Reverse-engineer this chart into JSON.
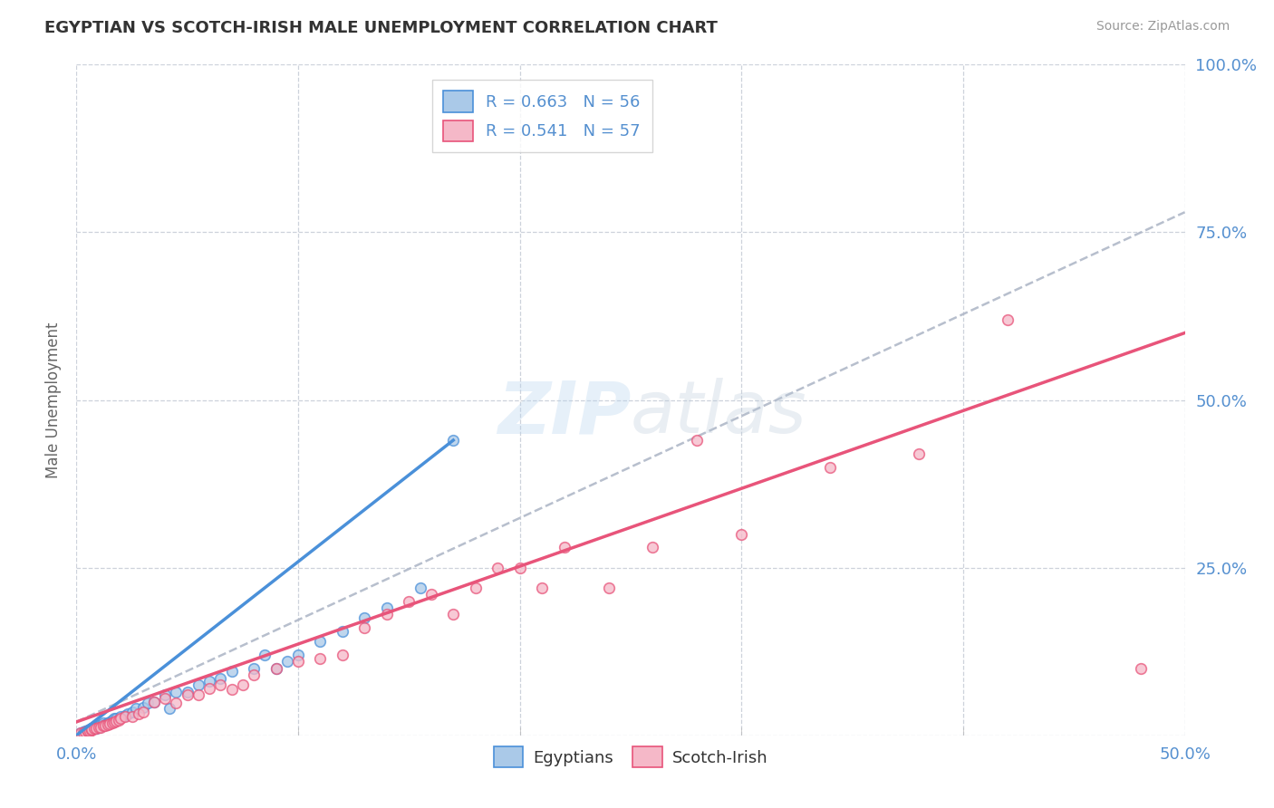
{
  "title": "EGYPTIAN VS SCOTCH-IRISH MALE UNEMPLOYMENT CORRELATION CHART",
  "source": "Source: ZipAtlas.com",
  "ylabel": "Male Unemployment",
  "xlim": [
    0.0,
    0.5
  ],
  "ylim": [
    0.0,
    1.0
  ],
  "xticks": [
    0.0,
    0.1,
    0.2,
    0.3,
    0.4,
    0.5
  ],
  "xticklabels": [
    "0.0%",
    "",
    "",
    "",
    "",
    "50.0%"
  ],
  "yticks": [
    0.0,
    0.25,
    0.5,
    0.75,
    1.0
  ],
  "yticklabels": [
    "",
    "25.0%",
    "50.0%",
    "75.0%",
    "100.0%"
  ],
  "egyptian_R": 0.663,
  "egyptian_N": 56,
  "scotchirish_R": 0.541,
  "scotchirish_N": 57,
  "egyptian_color": "#aac9e8",
  "scotchirish_color": "#f5b8c8",
  "egyptian_line_color": "#4a90d9",
  "scotchirish_line_color": "#e8547a",
  "dashed_line_color": "#b0b8c8",
  "background_color": "#ffffff",
  "grid_color": "#c8cdd8",
  "title_color": "#333333",
  "tick_color": "#5590d0",
  "watermark": "ZIPatlas",
  "marker_size": 70,
  "egyptian_x": [
    0.002,
    0.003,
    0.003,
    0.004,
    0.004,
    0.005,
    0.005,
    0.005,
    0.006,
    0.006,
    0.007,
    0.007,
    0.008,
    0.008,
    0.009,
    0.009,
    0.01,
    0.01,
    0.01,
    0.011,
    0.011,
    0.012,
    0.012,
    0.013,
    0.014,
    0.015,
    0.016,
    0.017,
    0.018,
    0.02,
    0.022,
    0.023,
    0.025,
    0.027,
    0.03,
    0.032,
    0.035,
    0.04,
    0.042,
    0.045,
    0.05,
    0.055,
    0.06,
    0.065,
    0.07,
    0.08,
    0.085,
    0.09,
    0.095,
    0.1,
    0.11,
    0.12,
    0.13,
    0.14,
    0.155,
    0.17
  ],
  "egyptian_y": [
    0.003,
    0.004,
    0.005,
    0.005,
    0.006,
    0.006,
    0.007,
    0.008,
    0.008,
    0.009,
    0.01,
    0.011,
    0.01,
    0.012,
    0.011,
    0.013,
    0.012,
    0.013,
    0.015,
    0.014,
    0.016,
    0.015,
    0.018,
    0.016,
    0.018,
    0.02,
    0.022,
    0.025,
    0.025,
    0.028,
    0.03,
    0.032,
    0.035,
    0.04,
    0.042,
    0.048,
    0.05,
    0.06,
    0.04,
    0.065,
    0.065,
    0.075,
    0.08,
    0.085,
    0.095,
    0.1,
    0.12,
    0.1,
    0.11,
    0.12,
    0.14,
    0.155,
    0.175,
    0.19,
    0.22,
    0.44
  ],
  "scotchirish_x": [
    0.002,
    0.003,
    0.004,
    0.005,
    0.005,
    0.006,
    0.007,
    0.007,
    0.008,
    0.009,
    0.01,
    0.011,
    0.012,
    0.013,
    0.014,
    0.015,
    0.016,
    0.017,
    0.018,
    0.019,
    0.02,
    0.022,
    0.025,
    0.028,
    0.03,
    0.035,
    0.04,
    0.045,
    0.05,
    0.055,
    0.06,
    0.065,
    0.07,
    0.075,
    0.08,
    0.09,
    0.1,
    0.11,
    0.12,
    0.13,
    0.14,
    0.15,
    0.16,
    0.17,
    0.18,
    0.19,
    0.2,
    0.21,
    0.22,
    0.24,
    0.26,
    0.28,
    0.3,
    0.34,
    0.38,
    0.42,
    0.48
  ],
  "scotchirish_y": [
    0.003,
    0.004,
    0.005,
    0.006,
    0.007,
    0.007,
    0.008,
    0.009,
    0.01,
    0.011,
    0.012,
    0.012,
    0.014,
    0.015,
    0.016,
    0.017,
    0.018,
    0.02,
    0.021,
    0.023,
    0.025,
    0.028,
    0.028,
    0.032,
    0.035,
    0.05,
    0.055,
    0.048,
    0.06,
    0.06,
    0.07,
    0.075,
    0.068,
    0.075,
    0.09,
    0.1,
    0.11,
    0.115,
    0.12,
    0.16,
    0.18,
    0.2,
    0.21,
    0.18,
    0.22,
    0.25,
    0.25,
    0.22,
    0.28,
    0.22,
    0.28,
    0.44,
    0.3,
    0.4,
    0.42,
    0.62,
    0.1
  ],
  "blue_line_x": [
    0.0,
    0.17
  ],
  "blue_line_y": [
    0.0,
    0.44
  ],
  "pink_line_x": [
    0.0,
    0.5
  ],
  "pink_line_y": [
    0.02,
    0.6
  ],
  "dash_line_x": [
    0.0,
    0.5
  ],
  "dash_line_y": [
    0.02,
    0.78
  ]
}
